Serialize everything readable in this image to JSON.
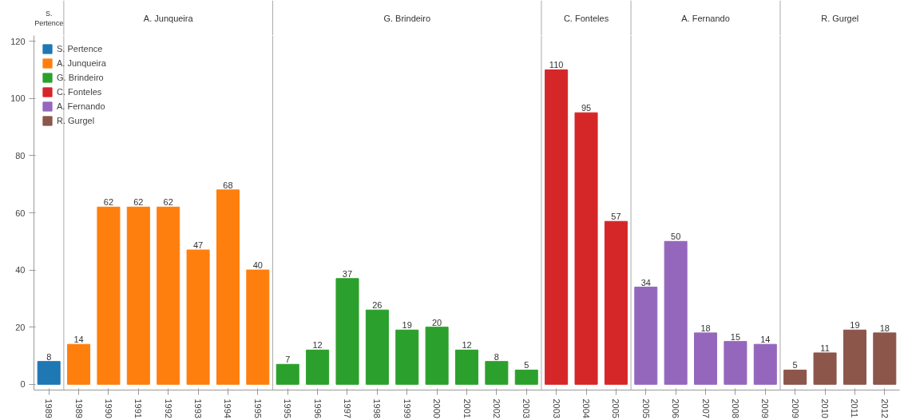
{
  "chart_data": {
    "type": "bar",
    "categories": [
      "1989",
      "1989",
      "1990",
      "1991",
      "1992",
      "1993",
      "1994",
      "1995",
      "1995",
      "1996",
      "1997",
      "1998",
      "1999",
      "2000",
      "2001",
      "2002",
      "2003",
      "2003",
      "2004",
      "2005",
      "2005",
      "2006",
      "2007",
      "2008",
      "2009",
      "2009",
      "2010",
      "2011",
      "2012"
    ],
    "series": [
      {
        "name": "S. Pertence",
        "color": "#1f77b4",
        "values": [
          8,
          null,
          null,
          null,
          null,
          null,
          null,
          null,
          null,
          null,
          null,
          null,
          null,
          null,
          null,
          null,
          null,
          null,
          null,
          null,
          null,
          null,
          null,
          null,
          null,
          null,
          null,
          null,
          null
        ]
      },
      {
        "name": "A. Junqueira",
        "color": "#ff7f0e",
        "values": [
          null,
          14,
          62,
          62,
          62,
          47,
          68,
          40,
          null,
          null,
          null,
          null,
          null,
          null,
          null,
          null,
          null,
          null,
          null,
          null,
          null,
          null,
          null,
          null,
          null,
          null,
          null,
          null,
          null
        ]
      },
      {
        "name": "G. Brindeiro",
        "color": "#2ca02c",
        "values": [
          null,
          null,
          null,
          null,
          null,
          null,
          null,
          null,
          7,
          12,
          37,
          26,
          19,
          20,
          12,
          8,
          5,
          null,
          null,
          null,
          null,
          null,
          null,
          null,
          null,
          null,
          null,
          null,
          null
        ]
      },
      {
        "name": "C. Fonteles",
        "color": "#d62728",
        "values": [
          null,
          null,
          null,
          null,
          null,
          null,
          null,
          null,
          null,
          null,
          null,
          null,
          null,
          null,
          null,
          null,
          null,
          110,
          95,
          57,
          null,
          null,
          null,
          null,
          null,
          null,
          null,
          null,
          null
        ]
      },
      {
        "name": "A. Fernando",
        "color": "#9467bd",
        "values": [
          null,
          null,
          null,
          null,
          null,
          null,
          null,
          null,
          null,
          null,
          null,
          null,
          null,
          null,
          null,
          null,
          null,
          null,
          null,
          null,
          34,
          50,
          18,
          15,
          14,
          null,
          null,
          null,
          null
        ]
      },
      {
        "name": "R. Gurgel",
        "color": "#8c564b",
        "values": [
          null,
          null,
          null,
          null,
          null,
          null,
          null,
          null,
          null,
          null,
          null,
          null,
          null,
          null,
          null,
          null,
          null,
          null,
          null,
          null,
          null,
          null,
          null,
          null,
          null,
          5,
          11,
          19,
          18
        ]
      }
    ],
    "ylim": [
      -2,
      122
    ],
    "yticks": [
      0,
      20,
      40,
      60,
      80,
      100,
      120
    ],
    "data_labels": true,
    "legend": "top left",
    "grid": false
  }
}
